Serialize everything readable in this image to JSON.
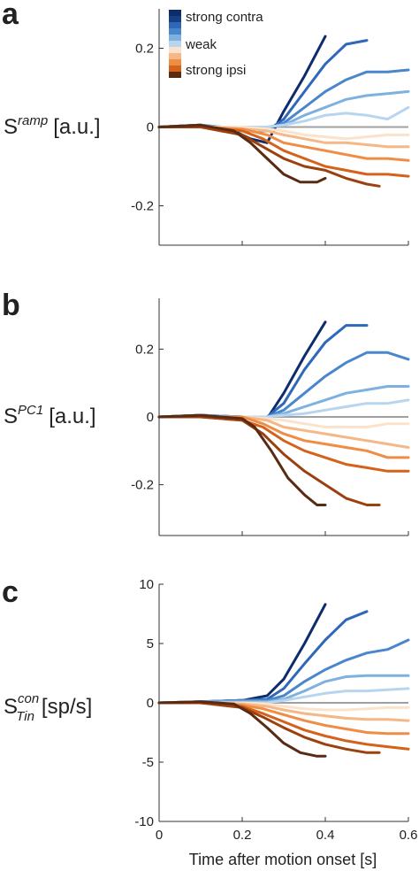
{
  "figure": {
    "xlabel": "Time after motion onset [s]",
    "legend": {
      "labels": [
        "strong contra",
        "",
        "weak",
        "",
        "strong ipsi"
      ],
      "placement": "top-left"
    },
    "colors": [
      "#0d2c6b",
      "#2f68b8",
      "#4a86cc",
      "#7eb1e0",
      "#b8d5ef",
      "#fbe3cb",
      "#f5b785",
      "#ef8d44",
      "#d4621c",
      "#9b400e",
      "#5a2a12"
    ],
    "baseline_color": "#a0a0a0"
  },
  "panels": [
    {
      "letter": "a",
      "ylabel_main": "S",
      "ylabel_sup": "ramp",
      "ylabel_sub": "",
      "ylabel_unit": "[a.u.]",
      "yticks": [
        "0.2",
        "0",
        "-0.2"
      ]
    },
    {
      "letter": "b",
      "ylabel_main": "S",
      "ylabel_sup": "PC1",
      "ylabel_sub": "",
      "ylabel_unit": "[a.u.]",
      "yticks": [
        "0.2",
        "0",
        "-0.2"
      ]
    },
    {
      "letter": "c",
      "ylabel_main": "S",
      "ylabel_sup": "con",
      "ylabel_sub": "Tin",
      "ylabel_unit": "[sp/s]",
      "yticks": [
        "10",
        "5",
        "0",
        "-5",
        "-10"
      ]
    }
  ],
  "chart_data": [
    {
      "type": "line",
      "title": "",
      "xlabel": "",
      "ylabel": "S^ramp [a.u.]",
      "xlim": [
        0,
        0.6
      ],
      "ylim": [
        -0.3,
        0.3
      ],
      "x_ticks": [
        0,
        0.2,
        0.4,
        0.6
      ],
      "y_ticks": [
        -0.2,
        0,
        0.2
      ],
      "legend": [
        "strong contra",
        "weak",
        "strong ipsi"
      ],
      "series": [
        {
          "color": "#0d2c6b",
          "x": [
            0,
            0.1,
            0.18,
            0.22,
            0.26,
            0.3,
            0.35,
            0.4
          ],
          "y": [
            0,
            0.005,
            -0.01,
            -0.03,
            -0.04,
            0.04,
            0.13,
            0.23
          ]
        },
        {
          "color": "#2f68b8",
          "x": [
            0,
            0.1,
            0.2,
            0.26,
            0.3,
            0.35,
            0.4,
            0.45,
            0.5
          ],
          "y": [
            0,
            0.005,
            -0.01,
            -0.01,
            0.02,
            0.09,
            0.16,
            0.21,
            0.22
          ]
        },
        {
          "color": "#4a86cc",
          "x": [
            0,
            0.1,
            0.2,
            0.26,
            0.3,
            0.35,
            0.4,
            0.45,
            0.5,
            0.55,
            0.6
          ],
          "y": [
            0,
            0.005,
            -0.005,
            -0.005,
            0.01,
            0.05,
            0.09,
            0.12,
            0.14,
            0.14,
            0.145
          ]
        },
        {
          "color": "#7eb1e0",
          "x": [
            0,
            0.1,
            0.2,
            0.26,
            0.3,
            0.35,
            0.4,
            0.45,
            0.5,
            0.55,
            0.6
          ],
          "y": [
            0,
            0.005,
            -0.005,
            0,
            0.005,
            0.03,
            0.05,
            0.07,
            0.08,
            0.085,
            0.09
          ]
        },
        {
          "color": "#b8d5ef",
          "x": [
            0,
            0.1,
            0.2,
            0.26,
            0.3,
            0.35,
            0.4,
            0.45,
            0.5,
            0.55,
            0.6
          ],
          "y": [
            0,
            0,
            0,
            0,
            0.005,
            0.015,
            0.03,
            0.035,
            0.03,
            0.02,
            0.05
          ]
        },
        {
          "color": "#fbe3cb",
          "x": [
            0,
            0.1,
            0.2,
            0.26,
            0.3,
            0.35,
            0.4,
            0.45,
            0.5,
            0.55,
            0.6
          ],
          "y": [
            0,
            0,
            0,
            -0.005,
            -0.01,
            -0.02,
            -0.025,
            -0.03,
            -0.025,
            -0.02,
            -0.02
          ]
        },
        {
          "color": "#f5b785",
          "x": [
            0,
            0.1,
            0.2,
            0.26,
            0.3,
            0.35,
            0.4,
            0.45,
            0.5,
            0.55,
            0.6
          ],
          "y": [
            0,
            0,
            -0.005,
            -0.01,
            -0.02,
            -0.03,
            -0.04,
            -0.04,
            -0.045,
            -0.05,
            -0.05
          ]
        },
        {
          "color": "#ef8d44",
          "x": [
            0,
            0.1,
            0.2,
            0.26,
            0.3,
            0.35,
            0.4,
            0.45,
            0.5,
            0.55,
            0.6
          ],
          "y": [
            0,
            0,
            -0.005,
            -0.02,
            -0.04,
            -0.05,
            -0.06,
            -0.07,
            -0.08,
            -0.08,
            -0.085
          ]
        },
        {
          "color": "#d4621c",
          "x": [
            0,
            0.1,
            0.2,
            0.25,
            0.3,
            0.35,
            0.4,
            0.45,
            0.5,
            0.55,
            0.6
          ],
          "y": [
            0,
            0,
            -0.01,
            -0.03,
            -0.06,
            -0.08,
            -0.1,
            -0.11,
            -0.12,
            -0.12,
            -0.125
          ]
        },
        {
          "color": "#9b400e",
          "x": [
            0,
            0.1,
            0.2,
            0.25,
            0.3,
            0.35,
            0.4,
            0.45,
            0.5,
            0.53
          ],
          "y": [
            0,
            0,
            -0.02,
            -0.05,
            -0.08,
            -0.1,
            -0.11,
            -0.13,
            -0.145,
            -0.15
          ]
        },
        {
          "color": "#5a2a12",
          "x": [
            0,
            0.1,
            0.18,
            0.22,
            0.26,
            0.3,
            0.34,
            0.38,
            0.4
          ],
          "y": [
            0,
            0.005,
            -0.01,
            -0.04,
            -0.08,
            -0.12,
            -0.14,
            -0.14,
            -0.13
          ]
        }
      ]
    },
    {
      "type": "line",
      "title": "",
      "xlabel": "",
      "ylabel": "S^PC1 [a.u.]",
      "xlim": [
        0,
        0.6
      ],
      "ylim": [
        -0.35,
        0.35
      ],
      "x_ticks": [
        0,
        0.2,
        0.4,
        0.6
      ],
      "y_ticks": [
        -0.2,
        0,
        0.2
      ],
      "series": [
        {
          "color": "#0d2c6b",
          "x": [
            0,
            0.1,
            0.2,
            0.26,
            0.3,
            0.35,
            0.4
          ],
          "y": [
            0,
            0.005,
            0,
            -0.005,
            0.07,
            0.18,
            0.28
          ]
        },
        {
          "color": "#2f68b8",
          "x": [
            0,
            0.1,
            0.2,
            0.26,
            0.3,
            0.35,
            0.4,
            0.45,
            0.5
          ],
          "y": [
            0,
            0.005,
            0,
            0,
            0.04,
            0.14,
            0.22,
            0.27,
            0.27
          ]
        },
        {
          "color": "#4a86cc",
          "x": [
            0,
            0.1,
            0.2,
            0.26,
            0.3,
            0.35,
            0.4,
            0.45,
            0.5,
            0.55,
            0.6
          ],
          "y": [
            0,
            0.005,
            0,
            0,
            0.02,
            0.07,
            0.12,
            0.16,
            0.19,
            0.19,
            0.17
          ]
        },
        {
          "color": "#7eb1e0",
          "x": [
            0,
            0.1,
            0.2,
            0.26,
            0.3,
            0.35,
            0.4,
            0.45,
            0.5,
            0.55,
            0.6
          ],
          "y": [
            0,
            0.005,
            0,
            0,
            0.01,
            0.03,
            0.05,
            0.07,
            0.08,
            0.09,
            0.09
          ]
        },
        {
          "color": "#b8d5ef",
          "x": [
            0,
            0.1,
            0.2,
            0.26,
            0.3,
            0.35,
            0.4,
            0.45,
            0.5,
            0.55,
            0.6
          ],
          "y": [
            0,
            0,
            0,
            0,
            0.005,
            0.01,
            0.02,
            0.03,
            0.04,
            0.04,
            0.05
          ]
        },
        {
          "color": "#fbe3cb",
          "x": [
            0,
            0.1,
            0.2,
            0.26,
            0.3,
            0.35,
            0.4,
            0.45,
            0.5,
            0.55,
            0.6
          ],
          "y": [
            0,
            0,
            0,
            -0.005,
            -0.01,
            -0.02,
            -0.03,
            -0.03,
            -0.03,
            -0.02,
            -0.02
          ]
        },
        {
          "color": "#f5b785",
          "x": [
            0,
            0.1,
            0.2,
            0.26,
            0.3,
            0.35,
            0.4,
            0.45,
            0.5,
            0.55,
            0.6
          ],
          "y": [
            0,
            0,
            0,
            -0.01,
            -0.03,
            -0.04,
            -0.05,
            -0.06,
            -0.07,
            -0.08,
            -0.09
          ]
        },
        {
          "color": "#ef8d44",
          "x": [
            0,
            0.1,
            0.2,
            0.25,
            0.3,
            0.35,
            0.4,
            0.45,
            0.5,
            0.55,
            0.6
          ],
          "y": [
            0,
            0,
            0,
            -0.02,
            -0.05,
            -0.07,
            -0.08,
            -0.09,
            -0.1,
            -0.12,
            -0.12
          ]
        },
        {
          "color": "#d4621c",
          "x": [
            0,
            0.1,
            0.2,
            0.25,
            0.3,
            0.35,
            0.4,
            0.45,
            0.5,
            0.55,
            0.6
          ],
          "y": [
            0,
            0,
            -0.01,
            -0.03,
            -0.07,
            -0.1,
            -0.12,
            -0.14,
            -0.15,
            -0.16,
            -0.16
          ]
        },
        {
          "color": "#9b400e",
          "x": [
            0,
            0.1,
            0.2,
            0.25,
            0.3,
            0.35,
            0.4,
            0.45,
            0.5,
            0.53
          ],
          "y": [
            0,
            0,
            -0.01,
            -0.05,
            -0.11,
            -0.16,
            -0.2,
            -0.24,
            -0.26,
            -0.26
          ]
        },
        {
          "color": "#5a2a12",
          "x": [
            0,
            0.1,
            0.2,
            0.23,
            0.27,
            0.31,
            0.35,
            0.38,
            0.4
          ],
          "y": [
            0,
            0.005,
            -0.005,
            -0.03,
            -0.1,
            -0.18,
            -0.23,
            -0.26,
            -0.26
          ]
        }
      ]
    },
    {
      "type": "line",
      "title": "",
      "xlabel": "Time after motion onset [s]",
      "ylabel": "S^con_Tin [sp/s]",
      "xlim": [
        0,
        0.6
      ],
      "ylim": [
        -10,
        10
      ],
      "x_ticks": [
        0,
        0.2,
        0.4,
        0.6
      ],
      "y_ticks": [
        -10,
        -5,
        0,
        5,
        10
      ],
      "series": [
        {
          "color": "#0d2c6b",
          "x": [
            0,
            0.1,
            0.2,
            0.26,
            0.3,
            0.35,
            0.4
          ],
          "y": [
            0,
            0.1,
            0.2,
            0.6,
            2,
            5,
            8.3
          ]
        },
        {
          "color": "#2f68b8",
          "x": [
            0,
            0.1,
            0.2,
            0.26,
            0.3,
            0.35,
            0.4,
            0.45,
            0.5
          ],
          "y": [
            0,
            0.1,
            0.2,
            0.3,
            1.2,
            3.3,
            5.3,
            7,
            7.7
          ]
        },
        {
          "color": "#4a86cc",
          "x": [
            0,
            0.1,
            0.2,
            0.26,
            0.3,
            0.35,
            0.4,
            0.45,
            0.5,
            0.55,
            0.6
          ],
          "y": [
            0,
            0.1,
            0.2,
            0.2,
            0.6,
            1.8,
            2.8,
            3.6,
            4.2,
            4.5,
            5.3
          ]
        },
        {
          "color": "#7eb1e0",
          "x": [
            0,
            0.1,
            0.2,
            0.26,
            0.3,
            0.35,
            0.4,
            0.45,
            0.5,
            0.55,
            0.6
          ],
          "y": [
            0,
            0.1,
            0.1,
            0.1,
            0.3,
            1,
            1.8,
            2.2,
            2.3,
            2.3,
            2.3
          ]
        },
        {
          "color": "#b8d5ef",
          "x": [
            0,
            0.1,
            0.2,
            0.26,
            0.3,
            0.35,
            0.4,
            0.45,
            0.5,
            0.55,
            0.6
          ],
          "y": [
            0,
            0,
            0,
            0,
            0.2,
            0.5,
            0.8,
            1,
            1,
            1.1,
            1.2
          ]
        },
        {
          "color": "#fbe3cb",
          "x": [
            0,
            0.1,
            0.2,
            0.26,
            0.3,
            0.35,
            0.4,
            0.45,
            0.5,
            0.55,
            0.6
          ],
          "y": [
            0,
            0,
            0,
            -0.1,
            -0.3,
            -0.5,
            -0.6,
            -0.6,
            -0.5,
            -0.4,
            -0.4
          ]
        },
        {
          "color": "#f5b785",
          "x": [
            0,
            0.1,
            0.2,
            0.26,
            0.3,
            0.35,
            0.4,
            0.45,
            0.5,
            0.55,
            0.6
          ],
          "y": [
            0,
            0,
            -0.1,
            -0.3,
            -0.6,
            -0.9,
            -1.1,
            -1.3,
            -1.4,
            -1.4,
            -1.5
          ]
        },
        {
          "color": "#ef8d44",
          "x": [
            0,
            0.1,
            0.2,
            0.25,
            0.3,
            0.35,
            0.4,
            0.45,
            0.5,
            0.55,
            0.6
          ],
          "y": [
            0,
            0,
            -0.2,
            -0.5,
            -1,
            -1.5,
            -1.9,
            -2.2,
            -2.5,
            -2.6,
            -2.6
          ]
        },
        {
          "color": "#d4621c",
          "x": [
            0,
            0.1,
            0.2,
            0.25,
            0.3,
            0.35,
            0.4,
            0.45,
            0.5,
            0.55,
            0.6
          ],
          "y": [
            0,
            0,
            -0.3,
            -0.9,
            -1.6,
            -2.3,
            -2.8,
            -3.2,
            -3.5,
            -3.7,
            -3.9
          ]
        },
        {
          "color": "#9b400e",
          "x": [
            0,
            0.1,
            0.2,
            0.25,
            0.3,
            0.35,
            0.4,
            0.45,
            0.5,
            0.53
          ],
          "y": [
            0,
            0,
            -0.4,
            -1.2,
            -2.1,
            -2.9,
            -3.5,
            -3.9,
            -4.2,
            -4.2
          ]
        },
        {
          "color": "#5a2a12",
          "x": [
            0,
            0.1,
            0.18,
            0.22,
            0.26,
            0.3,
            0.34,
            0.38,
            0.4
          ],
          "y": [
            0,
            0.1,
            -0.1,
            -0.9,
            -2.1,
            -3.4,
            -4.2,
            -4.5,
            -4.5
          ]
        }
      ]
    }
  ]
}
